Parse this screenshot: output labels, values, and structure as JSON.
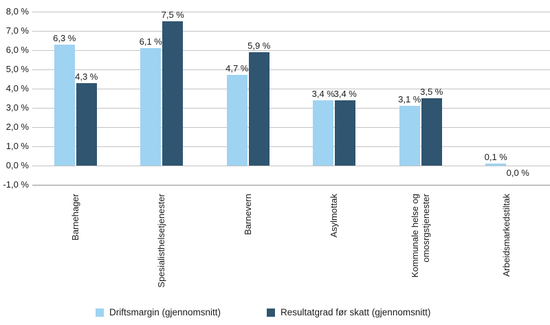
{
  "chart_data": {
    "type": "bar",
    "title": "",
    "xlabel": "",
    "ylabel": "",
    "categories": [
      "Barnehager",
      "Spesialisthelsetjenester",
      "Barnevern",
      "Asylmottak",
      "Kommunale helse og\nomosrgstjenester",
      "Arbeidsmarkedstiltak"
    ],
    "series": [
      {
        "name": "Driftsmargin (gjennomsnitt)",
        "color": "#9ed3f1",
        "values": [
          6.3,
          6.1,
          4.7,
          3.4,
          3.1,
          0.1
        ],
        "labels": [
          "6,3 %",
          "6,1 %",
          "4,7 %",
          "3,4 %",
          "3,1 %",
          "0,1 %"
        ]
      },
      {
        "name": "Resultatgrad før skatt (gjennomsnitt)",
        "color": "#2f5570",
        "values": [
          4.3,
          7.5,
          5.9,
          3.4,
          3.5,
          0.0
        ],
        "labels": [
          "4,3 %",
          "7,5 %",
          "5,9 %",
          "3,4 %",
          "3,5 %",
          "0,0 %"
        ]
      }
    ],
    "y_ticks": [
      "8,0 %",
      "7,0 %",
      "6,0 %",
      "5,0 %",
      "4,0 %",
      "3,0 %",
      "2,0 %",
      "1,0 %",
      "0,0 %",
      "-1,0 %"
    ],
    "ylim": [
      -1.0,
      8.0
    ],
    "y_step": 1.0,
    "grid": true,
    "legend_position": "bottom",
    "colors": {
      "gridline": "#c3c3c3",
      "axis_line": "#8f8f8f",
      "text": "#1a1a1a"
    }
  }
}
